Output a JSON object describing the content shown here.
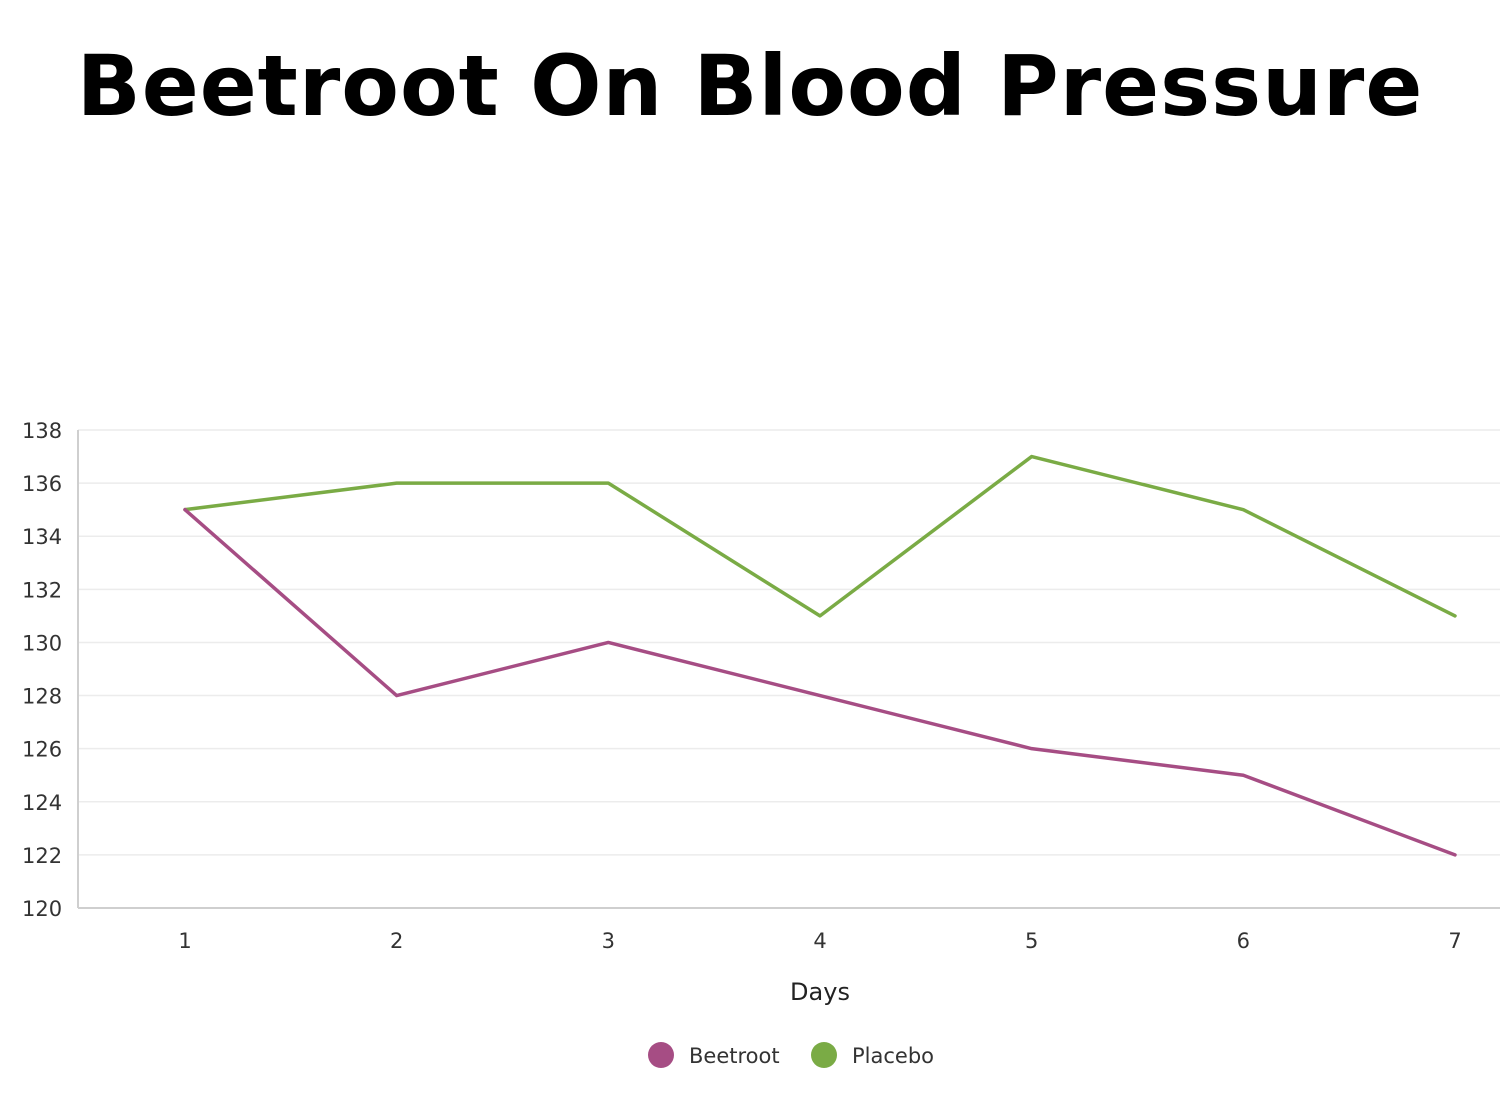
{
  "chart_data": {
    "type": "line",
    "title": "Beetroot On Blood Pressure",
    "xlabel": "Days",
    "ylabel": "",
    "categories": [
      "1",
      "2",
      "3",
      "4",
      "5",
      "6",
      "7"
    ],
    "ylim": [
      120,
      138
    ],
    "yticks": [
      120,
      122,
      124,
      126,
      128,
      130,
      132,
      134,
      136,
      138
    ],
    "grid": true,
    "legend_position": "bottom-center",
    "series": [
      {
        "name": "Beetroot",
        "color": "#a64d84",
        "values": [
          135,
          128,
          130,
          128,
          126,
          125,
          122
        ]
      },
      {
        "name": "Placebo",
        "color": "#7aab45",
        "values": [
          135,
          136,
          136,
          131,
          137,
          135,
          131
        ]
      }
    ]
  }
}
